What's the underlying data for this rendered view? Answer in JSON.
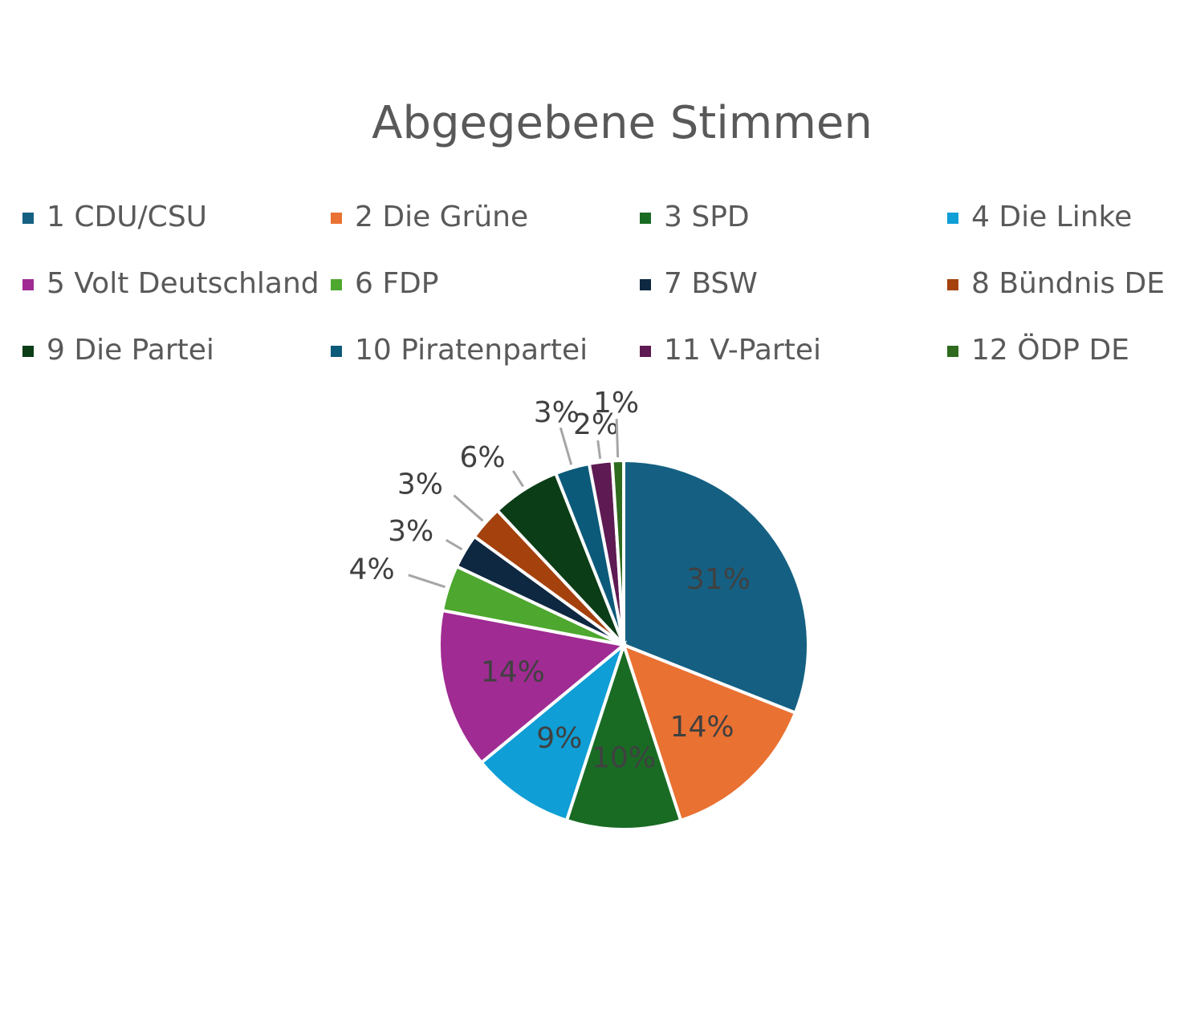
{
  "chart_data": {
    "type": "pie",
    "title": "Abgegebene Stimmen",
    "categories": [
      "1 CDU/CSU",
      "2 Die Grüne",
      "3 SPD",
      "4 Die Linke",
      "5 Volt Deutschland",
      "6 FDP",
      "7 BSW",
      "8 Bündnis DE",
      "9 Die Partei",
      "10 Piratenpartei",
      "11 V-Partei",
      "12 ÖDP DE"
    ],
    "values": [
      31,
      14,
      10,
      9,
      14,
      4,
      3,
      3,
      6,
      3,
      2,
      1
    ],
    "value_labels": [
      "31%",
      "14%",
      "10%",
      "9%",
      "14%",
      "4%",
      "3%",
      "3%",
      "6%",
      "3%",
      "2%",
      "1%"
    ],
    "colors": [
      "#156082",
      "#e97132",
      "#196b24",
      "#0f9ed5",
      "#a02b93",
      "#4ea72e",
      "#0e2841",
      "#a5410d",
      "#0b3d17",
      "#0c5a7a",
      "#5e1a52",
      "#2e6b1e"
    ],
    "legend": "top"
  }
}
